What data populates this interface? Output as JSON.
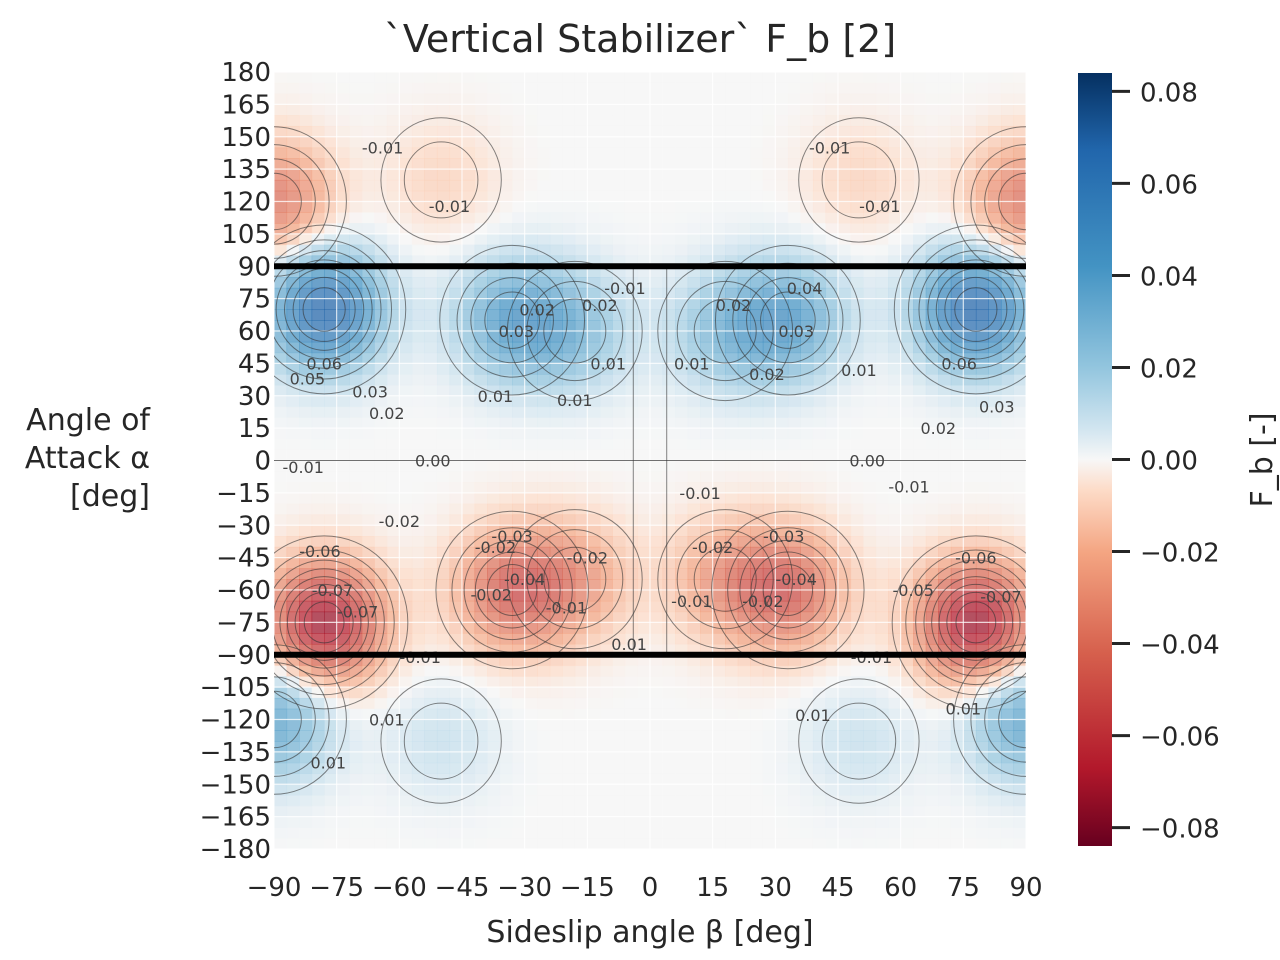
{
  "chart_data": {
    "type": "heatmap",
    "title": "`Vertical Stabilizer` F_b [2]",
    "xlabel": "Sideslip angle β [deg]",
    "ylabel_lines": [
      "Angle of",
      "Attack α",
      "[deg]"
    ],
    "colorbar_label": "F_b [-]",
    "xlim": [
      -90,
      90
    ],
    "ylim": [
      -180,
      180
    ],
    "clim": [
      -0.084,
      0.084
    ],
    "colormap": "RdBu",
    "x_ticks": [
      "−90",
      "−75",
      "−60",
      "−45",
      "−30",
      "−15",
      "0",
      "15",
      "30",
      "45",
      "60",
      "75",
      "90"
    ],
    "x_tick_values": [
      -90,
      -75,
      -60,
      -45,
      -30,
      -15,
      0,
      15,
      30,
      45,
      60,
      75,
      90
    ],
    "y_ticks": [
      "180",
      "165",
      "150",
      "135",
      "120",
      "105",
      "90",
      "75",
      "60",
      "45",
      "30",
      "15",
      "0",
      "−15",
      "−30",
      "−45",
      "−60",
      "−75",
      "−90",
      "−105",
      "−120",
      "−135",
      "−150",
      "−165",
      "−180"
    ],
    "y_tick_values": [
      180,
      165,
      150,
      135,
      120,
      105,
      90,
      75,
      60,
      45,
      30,
      15,
      0,
      -15,
      -30,
      -45,
      -60,
      -75,
      -90,
      -105,
      -120,
      -135,
      -150,
      -165,
      -180
    ],
    "colorbar_ticks": [
      "0.08",
      "0.06",
      "0.04",
      "0.02",
      "0.00",
      "−0.02",
      "−0.04",
      "−0.06",
      "−0.08"
    ],
    "colorbar_tick_values": [
      0.08,
      0.06,
      0.04,
      0.02,
      0.0,
      -0.02,
      -0.04,
      -0.06,
      -0.08
    ],
    "discontinuity_lines_alpha": [
      90,
      -90
    ],
    "grid": true,
    "field_peaks": [
      {
        "beta": -78,
        "alpha": 70,
        "value": 0.07
      },
      {
        "beta": 78,
        "alpha": 70,
        "value": 0.07
      },
      {
        "beta": -78,
        "alpha": -75,
        "value": -0.075
      },
      {
        "beta": 78,
        "alpha": -75,
        "value": -0.075
      },
      {
        "beta": -33,
        "alpha": 65,
        "value": 0.04
      },
      {
        "beta": 33,
        "alpha": 65,
        "value": 0.04
      },
      {
        "beta": -33,
        "alpha": -60,
        "value": -0.045
      },
      {
        "beta": 33,
        "alpha": -60,
        "value": -0.045
      },
      {
        "beta": -18,
        "alpha": 60,
        "value": 0.025
      },
      {
        "beta": 18,
        "alpha": 60,
        "value": 0.025
      },
      {
        "beta": -18,
        "alpha": -55,
        "value": -0.025
      },
      {
        "beta": 18,
        "alpha": -55,
        "value": -0.025
      },
      {
        "beta": -90,
        "alpha": 120,
        "value": -0.04
      },
      {
        "beta": 90,
        "alpha": 120,
        "value": -0.04
      },
      {
        "beta": -90,
        "alpha": -120,
        "value": 0.04
      },
      {
        "beta": 90,
        "alpha": -120,
        "value": 0.04
      },
      {
        "beta": -50,
        "alpha": 130,
        "value": -0.01
      },
      {
        "beta": 50,
        "alpha": 130,
        "value": -0.01
      },
      {
        "beta": -50,
        "alpha": -130,
        "value": 0.01
      },
      {
        "beta": 50,
        "alpha": -130,
        "value": 0.01
      }
    ],
    "contour_labels": [
      {
        "text": "0.00",
        "beta": -52,
        "alpha": 0
      },
      {
        "text": "0.00",
        "beta": 52,
        "alpha": 0
      },
      {
        "text": "-0.01",
        "beta": -83,
        "alpha": -3
      },
      {
        "text": "-0.01",
        "beta": -64,
        "alpha": 145
      },
      {
        "text": "-0.01",
        "beta": -48,
        "alpha": 118
      },
      {
        "text": "-0.01",
        "beta": 43,
        "alpha": 145
      },
      {
        "text": "-0.01",
        "beta": 55,
        "alpha": 118
      },
      {
        "text": "0.06",
        "beta": -78,
        "alpha": 45
      },
      {
        "text": "0.05",
        "beta": -82,
        "alpha": 38
      },
      {
        "text": "0.03",
        "beta": -67,
        "alpha": 32
      },
      {
        "text": "0.02",
        "beta": -63,
        "alpha": 22
      },
      {
        "text": "0.06",
        "beta": 74,
        "alpha": 45
      },
      {
        "text": "0.03",
        "beta": 83,
        "alpha": 25
      },
      {
        "text": "0.02",
        "beta": 69,
        "alpha": 15
      },
      {
        "text": "0.01",
        "beta": -37,
        "alpha": 30
      },
      {
        "text": "0.01",
        "beta": -18,
        "alpha": 28
      },
      {
        "text": "0.01",
        "beta": 10,
        "alpha": 45
      },
      {
        "text": "0.01",
        "beta": 50,
        "alpha": 42
      },
      {
        "text": "0.02",
        "beta": 28,
        "alpha": 40
      },
      {
        "text": "0.01",
        "beta": -10,
        "alpha": 45
      },
      {
        "text": "-0.01",
        "beta": -6,
        "alpha": 80
      },
      {
        "text": "-0.02",
        "beta": -60,
        "alpha": -28
      },
      {
        "text": "-0.01",
        "beta": 62,
        "alpha": -12
      },
      {
        "text": "-0.06",
        "beta": -79,
        "alpha": -42
      },
      {
        "text": "-0.07",
        "beta": -76,
        "alpha": -60
      },
      {
        "text": "-0.07",
        "beta": -70,
        "alpha": -70
      },
      {
        "text": "-0.06",
        "beta": 78,
        "alpha": -45
      },
      {
        "text": "-0.07",
        "beta": 84,
        "alpha": -63
      },
      {
        "text": "-0.05",
        "beta": 63,
        "alpha": -60
      },
      {
        "text": "-0.02",
        "beta": -37,
        "alpha": -40
      },
      {
        "text": "-0.03",
        "beta": -33,
        "alpha": -35
      },
      {
        "text": "-0.04",
        "beta": -30,
        "alpha": -55
      },
      {
        "text": "-0.02",
        "beta": -38,
        "alpha": -62
      },
      {
        "text": "-0.01",
        "beta": -20,
        "alpha": -68
      },
      {
        "text": "-0.02",
        "beta": -15,
        "alpha": -45
      },
      {
        "text": "-0.01",
        "beta": 12,
        "alpha": -15
      },
      {
        "text": "-0.02",
        "beta": 15,
        "alpha": -40
      },
      {
        "text": "-0.01",
        "beta": 10,
        "alpha": -65
      },
      {
        "text": "-0.02",
        "beta": 27,
        "alpha": -65
      },
      {
        "text": "-0.03",
        "beta": 32,
        "alpha": -35
      },
      {
        "text": "-0.04",
        "beta": 35,
        "alpha": -55
      },
      {
        "text": "0.01",
        "beta": -5,
        "alpha": -85
      },
      {
        "text": "-0.01",
        "beta": -55,
        "alpha": -91
      },
      {
        "text": "0.01",
        "beta": -63,
        "alpha": -120
      },
      {
        "text": "0.01",
        "beta": -77,
        "alpha": -140
      },
      {
        "text": "0.01",
        "beta": 39,
        "alpha": -118
      },
      {
        "text": "0.01",
        "beta": 75,
        "alpha": -115
      },
      {
        "text": "-0.01",
        "beta": 53,
        "alpha": -91
      },
      {
        "text": "0.02",
        "beta": -27,
        "alpha": 70
      },
      {
        "text": "0.03",
        "beta": -32,
        "alpha": 60
      },
      {
        "text": "0.02",
        "beta": -12,
        "alpha": 72
      },
      {
        "text": "0.02",
        "beta": 20,
        "alpha": 72
      },
      {
        "text": "0.03",
        "beta": 35,
        "alpha": 60
      },
      {
        "text": "0.04",
        "beta": 37,
        "alpha": 80
      }
    ]
  }
}
